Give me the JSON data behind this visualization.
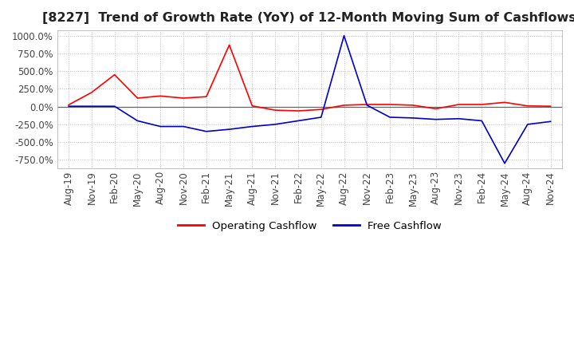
{
  "title": "[8227]  Trend of Growth Rate (YoY) of 12-Month Moving Sum of Cashflows",
  "title_fontsize": 11.5,
  "tick_fontsize": 8.5,
  "ylim": [
    -875,
    1075
  ],
  "yticks": [
    -750,
    -500,
    -250,
    0,
    250,
    500,
    750,
    1000
  ],
  "background_color": "#ffffff",
  "grid_color": "#bbbbbb",
  "operating_color": "#ff0000",
  "free_color": "#0000cc",
  "x_labels": [
    "Aug-19",
    "Nov-19",
    "Feb-20",
    "May-20",
    "Aug-20",
    "Nov-20",
    "Feb-21",
    "May-21",
    "Aug-21",
    "Nov-21",
    "Feb-22",
    "May-22",
    "Aug-22",
    "Nov-22",
    "Feb-23",
    "May-23",
    "Aug-23",
    "Nov-23",
    "Feb-24",
    "May-24",
    "Aug-24",
    "Nov-24"
  ],
  "operating_cashflow": [
    25,
    200,
    450,
    120,
    150,
    120,
    140,
    870,
    10,
    -50,
    -60,
    -40,
    20,
    30,
    30,
    20,
    -30,
    30,
    30,
    60,
    10,
    5
  ],
  "free_cashflow": [
    5,
    5,
    5,
    -200,
    -280,
    -280,
    -350,
    -320,
    -280,
    -250,
    -200,
    -150,
    1000,
    20,
    -150,
    -160,
    -180,
    -170,
    -200,
    -800,
    -250,
    -210
  ]
}
